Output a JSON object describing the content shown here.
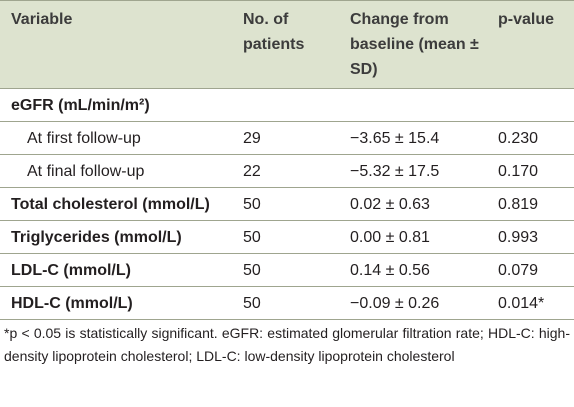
{
  "table": {
    "headers": {
      "variable": "Variable",
      "patients": "No. of patients",
      "change": "Change from baseline (mean ± SD)",
      "pvalue": "p-value"
    },
    "rows": [
      {
        "variable": "eGFR (mL/min/m²)",
        "patients": "",
        "change": "",
        "pvalue": "",
        "bold": true,
        "indent": false
      },
      {
        "variable": "At first follow-up",
        "patients": "29",
        "change": "−3.65 ± 15.4",
        "pvalue": "0.230",
        "bold": false,
        "indent": true
      },
      {
        "variable": "At final follow-up",
        "patients": "22",
        "change": "−5.32 ± 17.5",
        "pvalue": "0.170",
        "bold": false,
        "indent": true
      },
      {
        "variable": "Total cholesterol (mmol/L)",
        "patients": "50",
        "change": "0.02 ± 0.63",
        "pvalue": "0.819",
        "bold": true,
        "indent": false
      },
      {
        "variable": "Triglycerides (mmol/L)",
        "patients": "50",
        "change": "0.00 ± 0.81",
        "pvalue": "0.993",
        "bold": true,
        "indent": false
      },
      {
        "variable": "LDL-C (mmol/L)",
        "patients": "50",
        "change": "0.14 ± 0.56",
        "pvalue": "0.079",
        "bold": true,
        "indent": false
      },
      {
        "variable": "HDL-C (mmol/L)",
        "patients": "50",
        "change": "−0.09 ± 0.26",
        "pvalue": "0.014*",
        "bold": true,
        "indent": false
      }
    ]
  },
  "footnote": "*p < 0.05 is statistically significant. eGFR: estimated glomerular filtration rate; HDL-C: high-density lipoprotein cholesterol; LDL-C: low-density lipoprotein cholesterol",
  "colors": {
    "header_bg": "#dde3cf",
    "rule": "#9fa58f",
    "text": "#231f20"
  }
}
